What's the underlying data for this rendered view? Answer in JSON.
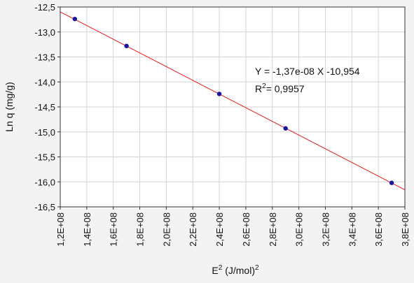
{
  "chart_data": {
    "type": "scatter",
    "xlabel": "E",
    "xlabel_sup": "2",
    "xlabel_unit": " (J/mol)",
    "xlabel_unit_sup": "2",
    "ylabel": "Ln q (mg/g)",
    "xlim": [
      120000000,
      380000000
    ],
    "ylim": [
      -16.5,
      -12.5
    ],
    "grid": true,
    "x_ticks": [
      "1,2E+08",
      "1,4E+08",
      "1,6E+08",
      "1,8E+08",
      "2,0E+08",
      "2,2E+08",
      "2,4E+08",
      "2,6E+08",
      "2,8E+08",
      "3,0E+08",
      "3,2E+08",
      "3,4E+08",
      "3,6E+08",
      "3,8E+08"
    ],
    "y_ticks": [
      "-12,5",
      "-13,0",
      "-13,5",
      "-14,0",
      "-14,5",
      "-15,0",
      "-15,5",
      "-16,0",
      "-16,5"
    ],
    "points": {
      "x": [
        131000000,
        170000000,
        240000000,
        290000000,
        370000000
      ],
      "y": [
        -12.74,
        -13.28,
        -14.24,
        -14.93,
        -16.02
      ]
    },
    "fit": {
      "slope": -1.37e-08,
      "intercept": -10.954
    },
    "annotation": {
      "equation": "Y = -1,37e-08 X -10,954",
      "r2_prefix": "R",
      "r2_sup": "2",
      "r2_value": "= 0,9957"
    },
    "colors": {
      "point": "#1515a0",
      "fit_line": "#e41b1b",
      "grid": "#d4d4d4",
      "plot_bg": "#ffffff",
      "frame": "#333333"
    }
  }
}
